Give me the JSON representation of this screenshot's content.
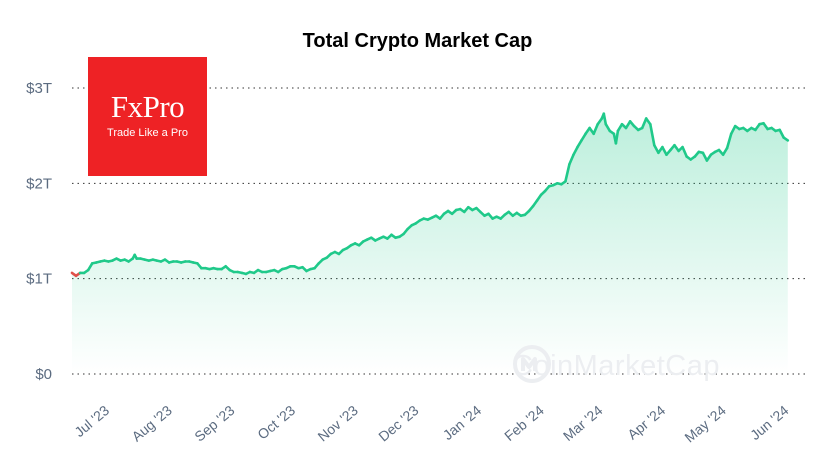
{
  "header": {
    "title": "Total Crypto Market Cap"
  },
  "logo": {
    "name": "FxPro",
    "tagline": "Trade Like a Pro",
    "bg_color": "#ee2225"
  },
  "watermark": {
    "text": "CoinMarketCap"
  },
  "colors": {
    "up": "#20c98a",
    "down": "#e0504a",
    "fill": "#20c98a",
    "grid": "#333333"
  },
  "chart_data": {
    "type": "area",
    "title": "Total Crypto Market Cap",
    "xlabel": "",
    "ylabel": "",
    "ylim": [
      0,
      3
    ],
    "y_unit": "trillion USD",
    "y_ticks": [
      0,
      1,
      2,
      3
    ],
    "y_tick_labels": [
      "$0",
      "$1T",
      "$2T",
      "$3T"
    ],
    "x_tick_labels": [
      "Jul '23",
      "Aug '23",
      "Sep '23",
      "Oct '23",
      "Nov '23",
      "Dec '23",
      "Jan '24",
      "Feb '24",
      "Mar '24",
      "Apr '24",
      "May '24",
      "Jun '24"
    ],
    "x_tick_days": [
      12,
      43,
      74,
      104,
      135,
      165,
      196,
      227,
      256,
      287,
      317,
      348
    ],
    "x_domain_days": [
      0,
      364
    ],
    "baseline": 1.06,
    "grid": "horizontal-dotted",
    "series": [
      {
        "name": "Total Market Cap",
        "points": [
          [
            0,
            1.06
          ],
          [
            2,
            1.03
          ],
          [
            4,
            1.06
          ],
          [
            6,
            1.06
          ],
          [
            8,
            1.09
          ],
          [
            10,
            1.16
          ],
          [
            12,
            1.17
          ],
          [
            14,
            1.18
          ],
          [
            16,
            1.19
          ],
          [
            18,
            1.18
          ],
          [
            20,
            1.19
          ],
          [
            22,
            1.21
          ],
          [
            24,
            1.19
          ],
          [
            26,
            1.2
          ],
          [
            28,
            1.18
          ],
          [
            30,
            1.21
          ],
          [
            31,
            1.25
          ],
          [
            32,
            1.21
          ],
          [
            34,
            1.21
          ],
          [
            36,
            1.2
          ],
          [
            38,
            1.19
          ],
          [
            40,
            1.2
          ],
          [
            42,
            1.19
          ],
          [
            44,
            1.18
          ],
          [
            46,
            1.2
          ],
          [
            48,
            1.17
          ],
          [
            50,
            1.18
          ],
          [
            52,
            1.18
          ],
          [
            54,
            1.17
          ],
          [
            56,
            1.18
          ],
          [
            58,
            1.18
          ],
          [
            60,
            1.17
          ],
          [
            62,
            1.16
          ],
          [
            64,
            1.11
          ],
          [
            66,
            1.11
          ],
          [
            68,
            1.1
          ],
          [
            70,
            1.11
          ],
          [
            72,
            1.1
          ],
          [
            74,
            1.1
          ],
          [
            76,
            1.13
          ],
          [
            78,
            1.09
          ],
          [
            80,
            1.07
          ],
          [
            82,
            1.07
          ],
          [
            84,
            1.06
          ],
          [
            86,
            1.05
          ],
          [
            88,
            1.07
          ],
          [
            90,
            1.06
          ],
          [
            92,
            1.09
          ],
          [
            94,
            1.07
          ],
          [
            96,
            1.07
          ],
          [
            98,
            1.08
          ],
          [
            100,
            1.09
          ],
          [
            102,
            1.07
          ],
          [
            104,
            1.1
          ],
          [
            106,
            1.11
          ],
          [
            108,
            1.13
          ],
          [
            110,
            1.13
          ],
          [
            112,
            1.11
          ],
          [
            114,
            1.12
          ],
          [
            116,
            1.08
          ],
          [
            118,
            1.1
          ],
          [
            120,
            1.11
          ],
          [
            122,
            1.16
          ],
          [
            124,
            1.2
          ],
          [
            126,
            1.22
          ],
          [
            128,
            1.26
          ],
          [
            130,
            1.28
          ],
          [
            132,
            1.26
          ],
          [
            134,
            1.3
          ],
          [
            136,
            1.32
          ],
          [
            138,
            1.35
          ],
          [
            140,
            1.37
          ],
          [
            142,
            1.35
          ],
          [
            144,
            1.39
          ],
          [
            146,
            1.41
          ],
          [
            148,
            1.43
          ],
          [
            150,
            1.4
          ],
          [
            152,
            1.42
          ],
          [
            154,
            1.44
          ],
          [
            156,
            1.42
          ],
          [
            158,
            1.46
          ],
          [
            160,
            1.43
          ],
          [
            162,
            1.44
          ],
          [
            164,
            1.47
          ],
          [
            166,
            1.52
          ],
          [
            168,
            1.56
          ],
          [
            170,
            1.58
          ],
          [
            172,
            1.61
          ],
          [
            174,
            1.63
          ],
          [
            176,
            1.62
          ],
          [
            178,
            1.64
          ],
          [
            180,
            1.66
          ],
          [
            182,
            1.63
          ],
          [
            184,
            1.68
          ],
          [
            186,
            1.71
          ],
          [
            188,
            1.68
          ],
          [
            190,
            1.72
          ],
          [
            192,
            1.73
          ],
          [
            194,
            1.7
          ],
          [
            196,
            1.75
          ],
          [
            198,
            1.72
          ],
          [
            200,
            1.74
          ],
          [
            202,
            1.7
          ],
          [
            204,
            1.66
          ],
          [
            206,
            1.68
          ],
          [
            208,
            1.63
          ],
          [
            210,
            1.65
          ],
          [
            212,
            1.63
          ],
          [
            214,
            1.67
          ],
          [
            216,
            1.7
          ],
          [
            218,
            1.66
          ],
          [
            220,
            1.69
          ],
          [
            222,
            1.66
          ],
          [
            224,
            1.67
          ],
          [
            226,
            1.71
          ],
          [
            228,
            1.76
          ],
          [
            230,
            1.82
          ],
          [
            232,
            1.88
          ],
          [
            234,
            1.92
          ],
          [
            236,
            1.97
          ],
          [
            238,
            1.98
          ],
          [
            240,
            2.0
          ],
          [
            242,
            1.99
          ],
          [
            244,
            2.02
          ],
          [
            246,
            2.2
          ],
          [
            248,
            2.3
          ],
          [
            250,
            2.38
          ],
          [
            252,
            2.45
          ],
          [
            254,
            2.52
          ],
          [
            256,
            2.58
          ],
          [
            258,
            2.52
          ],
          [
            260,
            2.62
          ],
          [
            262,
            2.68
          ],
          [
            263,
            2.73
          ],
          [
            264,
            2.62
          ],
          [
            266,
            2.55
          ],
          [
            268,
            2.52
          ],
          [
            269,
            2.42
          ],
          [
            270,
            2.55
          ],
          [
            272,
            2.62
          ],
          [
            274,
            2.58
          ],
          [
            276,
            2.65
          ],
          [
            278,
            2.6
          ],
          [
            280,
            2.56
          ],
          [
            282,
            2.58
          ],
          [
            284,
            2.68
          ],
          [
            286,
            2.62
          ],
          [
            288,
            2.4
          ],
          [
            290,
            2.32
          ],
          [
            292,
            2.38
          ],
          [
            294,
            2.3
          ],
          [
            296,
            2.35
          ],
          [
            298,
            2.4
          ],
          [
            300,
            2.34
          ],
          [
            302,
            2.38
          ],
          [
            304,
            2.28
          ],
          [
            306,
            2.25
          ],
          [
            308,
            2.28
          ],
          [
            310,
            2.33
          ],
          [
            312,
            2.32
          ],
          [
            314,
            2.24
          ],
          [
            316,
            2.3
          ],
          [
            318,
            2.33
          ],
          [
            320,
            2.35
          ],
          [
            322,
            2.3
          ],
          [
            324,
            2.37
          ],
          [
            326,
            2.52
          ],
          [
            328,
            2.6
          ],
          [
            330,
            2.57
          ],
          [
            332,
            2.58
          ],
          [
            334,
            2.55
          ],
          [
            336,
            2.58
          ],
          [
            338,
            2.56
          ],
          [
            340,
            2.62
          ],
          [
            342,
            2.63
          ],
          [
            344,
            2.57
          ],
          [
            346,
            2.58
          ],
          [
            348,
            2.55
          ],
          [
            350,
            2.56
          ],
          [
            352,
            2.48
          ],
          [
            354,
            2.45
          ]
        ]
      }
    ]
  }
}
